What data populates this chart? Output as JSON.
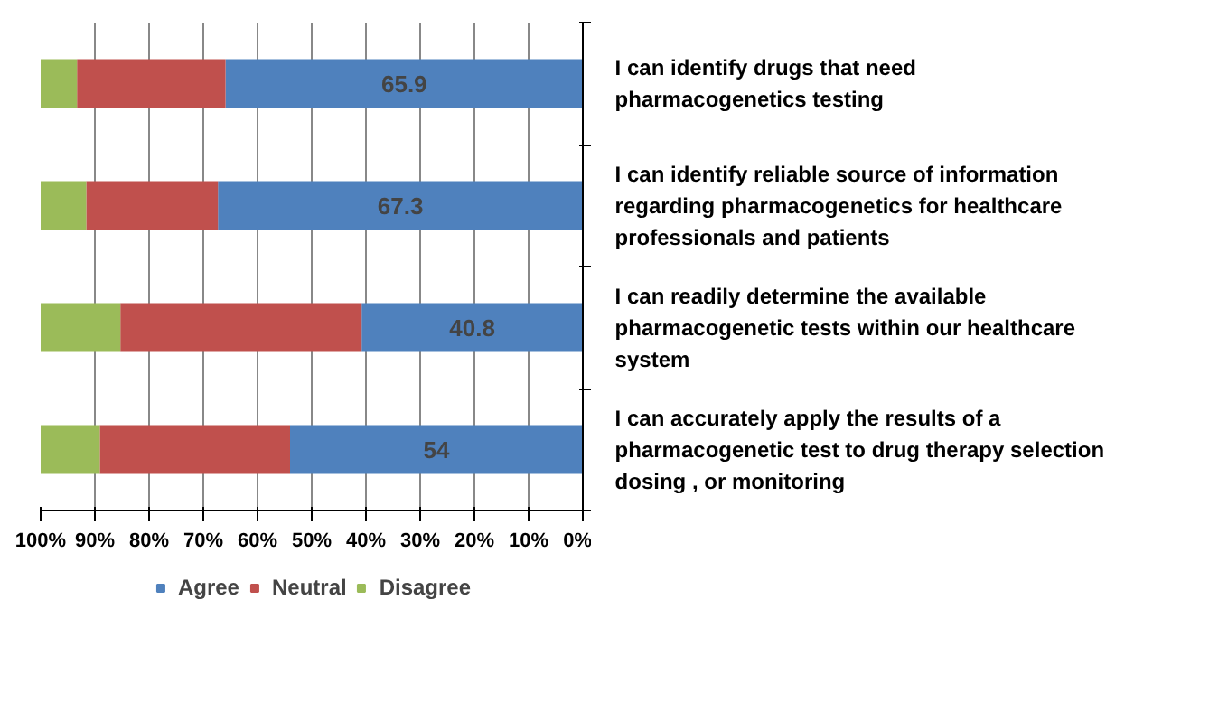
{
  "chart_data": {
    "type": "bar",
    "orientation": "horizontal",
    "stacked": true,
    "categories": [
      "I can identify drugs that need pharmacogenetics testing",
      "I can identify reliable source of information regarding pharmacogenetics for healthcare professionals and patients",
      "I can readily determine the available pharmacogenetic tests within our healthcare system",
      "I can accurately apply the results of a pharmacogenetic test to drug therapy selection dosing , or monitoring"
    ],
    "series": [
      {
        "name": "Agree",
        "color": "#4f81bd",
        "values": [
          65.9,
          67.3,
          40.8,
          54
        ],
        "value_labels": [
          "65.9",
          "67.3",
          "40.8",
          "54"
        ]
      },
      {
        "name": "Neutral",
        "color": "#c0504d",
        "values": [
          27.4,
          24.3,
          44.5,
          35.1
        ]
      },
      {
        "name": "Disagree",
        "color": "#9bbb59",
        "values": [
          6.7,
          8.4,
          14.7,
          10.9
        ]
      }
    ],
    "xlim": [
      100,
      0
    ],
    "xticks": [
      {
        "value": 100,
        "label": "100%"
      },
      {
        "value": 90,
        "label": "90%"
      },
      {
        "value": 80,
        "label": "80%"
      },
      {
        "value": 70,
        "label": "70%"
      },
      {
        "value": 60,
        "label": "60%"
      },
      {
        "value": 50,
        "label": "50%"
      },
      {
        "value": 40,
        "label": "40%"
      },
      {
        "value": 30,
        "label": "30%"
      },
      {
        "value": 20,
        "label": "20%"
      },
      {
        "value": 10,
        "label": "10%"
      },
      {
        "value": 0,
        "label": "0%"
      }
    ],
    "grid": "x",
    "legend": "bottom"
  }
}
